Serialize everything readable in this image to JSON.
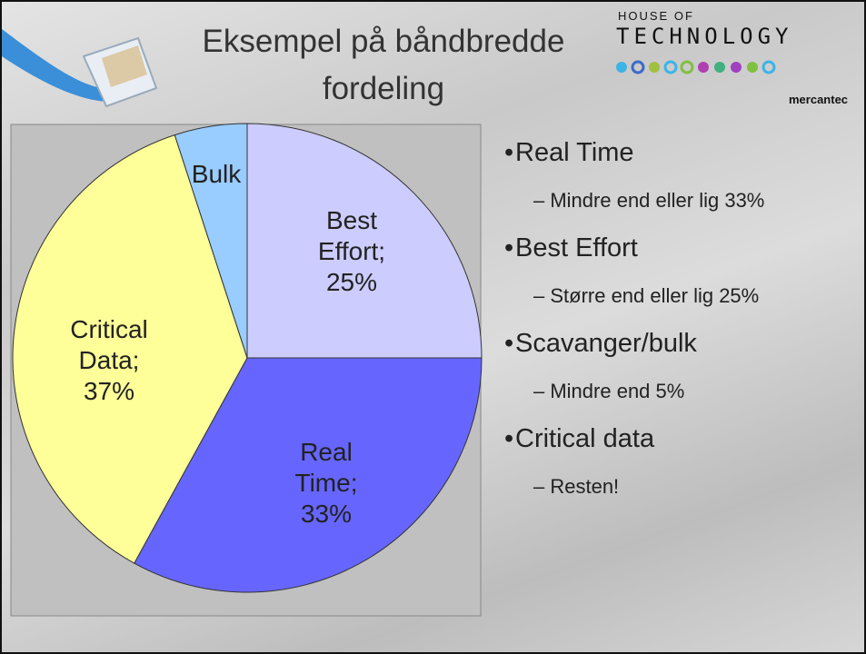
{
  "title": [
    "Eksempel på båndbredde",
    "fordeling"
  ],
  "logo": {
    "line1": "HOUSE OF",
    "line2": "TECHNOLOGY",
    "brand": "mercantec"
  },
  "bullets": [
    {
      "text": "Real Time",
      "sub": "– Mindre end eller lig 33%"
    },
    {
      "text": "Best Effort",
      "sub": "– Større end eller lig 25%"
    },
    {
      "text": "Scavanger/bulk",
      "sub": "– Mindre end 5%"
    },
    {
      "text": "Critical data",
      "sub": "– Resten!"
    }
  ],
  "chart_data": {
    "type": "pie",
    "categories": [
      "Best Effort;",
      "Real Time;",
      "Critical Data;",
      "Bulk"
    ],
    "values": [
      25,
      33,
      37,
      5
    ],
    "value_labels": [
      "25%",
      "33%",
      "37%",
      null
    ],
    "colors": [
      "#ccccff",
      "#6666ff",
      "#ffff99",
      "#99ccff"
    ]
  }
}
